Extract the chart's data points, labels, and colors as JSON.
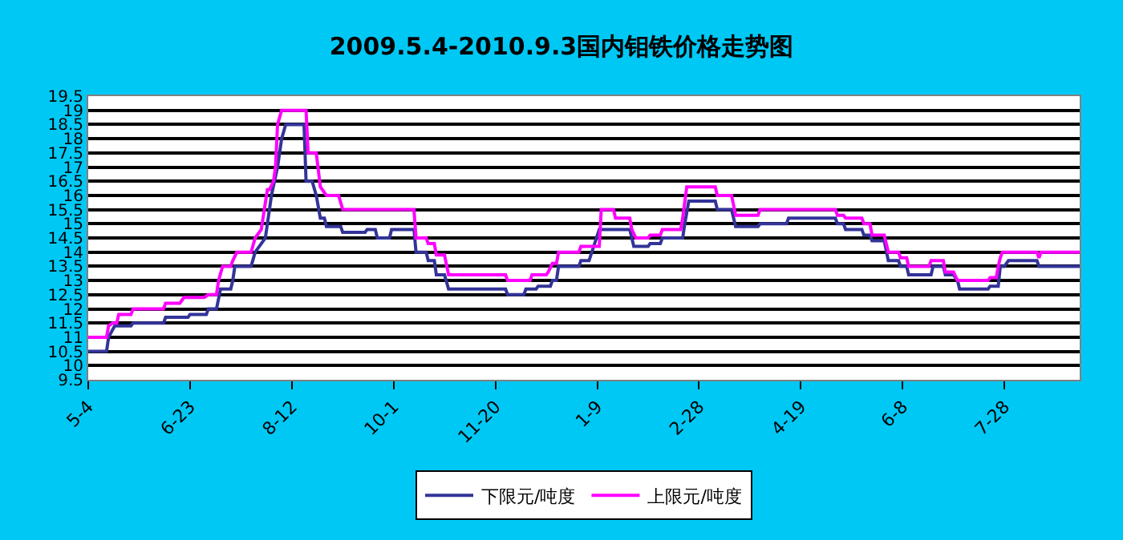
{
  "chart_data": {
    "type": "line",
    "title": "2009.5.4-2010.9.3国内钼铁价格走势图",
    "series": [
      {
        "name": "下限元/吨度",
        "color": "#333399",
        "x": [
          "2009-05-04",
          "2009-05-13",
          "2009-05-14",
          "2009-05-17",
          "2009-05-25",
          "2009-05-26",
          "2009-06-10",
          "2009-06-11",
          "2009-06-22",
          "2009-06-23",
          "2009-07-01",
          "2009-07-02",
          "2009-07-06",
          "2009-07-08",
          "2009-07-13",
          "2009-07-14",
          "2009-07-15",
          "2009-07-23",
          "2009-07-25",
          "2009-07-28",
          "2009-07-30",
          "2009-07-31",
          "2009-08-02",
          "2009-08-05",
          "2009-08-07",
          "2009-08-09",
          "2009-08-18",
          "2009-08-19",
          "2009-08-22",
          "2009-08-24",
          "2009-08-26",
          "2009-08-28",
          "2009-08-29",
          "2009-09-05",
          "2009-09-06",
          "2009-09-17",
          "2009-09-18",
          "2009-09-22",
          "2009-09-23",
          "2009-09-29",
          "2009-09-30",
          "2009-10-11",
          "2009-10-12",
          "2009-10-17",
          "2009-10-18",
          "2009-10-21",
          "2009-10-22",
          "2009-10-26",
          "2009-10-28",
          "2009-11-25",
          "2009-11-26",
          "2009-12-04",
          "2009-12-05",
          "2009-12-10",
          "2009-12-11",
          "2009-12-17",
          "2009-12-18",
          "2009-12-20",
          "2009-12-21",
          "2009-12-31",
          "2010-01-01",
          "2010-01-05",
          "2010-01-10",
          "2010-01-25",
          "2010-01-26",
          "2010-01-27",
          "2010-02-03",
          "2010-02-04",
          "2010-02-09",
          "2010-02-10",
          "2010-02-20",
          "2010-02-21",
          "2010-02-23",
          "2010-03-08",
          "2010-03-09",
          "2010-03-16",
          "2010-03-18",
          "2010-03-29",
          "2010-03-30",
          "2010-04-12",
          "2010-04-13",
          "2010-05-06",
          "2010-05-07",
          "2010-05-10",
          "2010-05-11",
          "2010-05-19",
          "2010-05-20",
          "2010-05-23",
          "2010-05-24",
          "2010-05-30",
          "2010-06-01",
          "2010-06-06",
          "2010-06-07",
          "2010-06-10",
          "2010-06-11",
          "2010-06-22",
          "2010-06-23",
          "2010-06-28",
          "2010-06-29",
          "2010-07-03",
          "2010-07-05",
          "2010-07-06",
          "2010-07-20",
          "2010-07-21",
          "2010-07-25",
          "2010-07-26",
          "2010-07-28",
          "2010-07-30",
          "2010-08-13",
          "2010-08-14",
          "2010-09-03"
        ],
        "values": [
          10.5,
          10.5,
          11.0,
          11.4,
          11.4,
          11.5,
          11.5,
          11.7,
          11.7,
          11.8,
          11.8,
          12.0,
          12.0,
          12.7,
          12.7,
          13.0,
          13.5,
          13.5,
          14.0,
          14.3,
          14.5,
          15.0,
          16.0,
          17.0,
          18.0,
          18.5,
          18.5,
          16.5,
          16.5,
          16.0,
          15.2,
          15.2,
          14.9,
          14.9,
          14.7,
          14.7,
          14.8,
          14.8,
          14.5,
          14.5,
          14.8,
          14.8,
          14.0,
          14.0,
          13.7,
          13.7,
          13.2,
          13.2,
          12.7,
          12.7,
          12.5,
          12.5,
          12.7,
          12.7,
          12.8,
          12.8,
          13.0,
          13.0,
          13.5,
          13.5,
          13.7,
          13.7,
          14.8,
          14.8,
          14.5,
          14.2,
          14.2,
          14.3,
          14.3,
          14.5,
          14.5,
          15.0,
          15.8,
          15.8,
          15.5,
          15.5,
          14.9,
          14.9,
          15.0,
          15.0,
          15.2,
          15.2,
          15.0,
          15.0,
          14.8,
          14.8,
          14.6,
          14.6,
          14.4,
          14.4,
          13.7,
          13.7,
          13.5,
          13.5,
          13.2,
          13.2,
          13.5,
          13.5,
          13.2,
          13.2,
          13.0,
          12.7,
          12.7,
          12.8,
          12.8,
          13.5,
          13.5,
          13.7,
          13.7,
          13.5,
          13.5
        ]
      },
      {
        "name": "上限元/吨度",
        "color": "#ff00ff",
        "x": [
          "2009-05-04",
          "2009-05-13",
          "2009-05-14",
          "2009-05-16",
          "2009-05-18",
          "2009-05-19",
          "2009-05-25",
          "2009-05-26",
          "2009-06-10",
          "2009-06-11",
          "2009-06-18",
          "2009-06-20",
          "2009-06-30",
          "2009-07-02",
          "2009-07-06",
          "2009-07-07",
          "2009-07-09",
          "2009-07-13",
          "2009-07-14",
          "2009-07-16",
          "2009-07-23",
          "2009-07-25",
          "2009-07-28",
          "2009-07-31",
          "2009-08-01",
          "2009-08-03",
          "2009-08-04",
          "2009-08-05",
          "2009-08-07",
          "2009-08-19",
          "2009-08-20",
          "2009-08-24",
          "2009-08-26",
          "2009-08-29",
          "2009-09-04",
          "2009-09-06",
          "2009-10-11",
          "2009-10-12",
          "2009-10-17",
          "2009-10-18",
          "2009-10-21",
          "2009-10-22",
          "2009-10-26",
          "2009-10-28",
          "2009-11-25",
          "2009-11-26",
          "2009-12-07",
          "2009-12-08",
          "2009-12-15",
          "2009-12-16",
          "2009-12-18",
          "2009-12-20",
          "2009-12-21",
          "2009-12-31",
          "2010-01-01",
          "2010-01-10",
          "2010-01-11",
          "2010-01-17",
          "2010-01-18",
          "2010-01-25",
          "2010-01-26",
          "2010-01-28",
          "2010-02-03",
          "2010-02-04",
          "2010-02-09",
          "2010-02-10",
          "2010-02-19",
          "2010-02-20",
          "2010-02-22",
          "2010-03-08",
          "2010-03-09",
          "2010-03-16",
          "2010-03-18",
          "2010-03-29",
          "2010-03-30",
          "2010-05-06",
          "2010-05-07",
          "2010-05-10",
          "2010-05-11",
          "2010-05-19",
          "2010-05-20",
          "2010-05-23",
          "2010-05-24",
          "2010-05-30",
          "2010-06-01",
          "2010-06-06",
          "2010-06-07",
          "2010-06-10",
          "2010-06-11",
          "2010-06-21",
          "2010-06-22",
          "2010-06-28",
          "2010-06-29",
          "2010-07-03",
          "2010-07-05",
          "2010-07-20",
          "2010-07-21",
          "2010-07-24",
          "2010-07-25",
          "2010-07-26",
          "2010-07-27",
          "2010-08-13",
          "2010-08-14",
          "2010-08-15",
          "2010-09-03"
        ],
        "values": [
          11.0,
          11.0,
          11.4,
          11.5,
          11.5,
          11.8,
          11.8,
          12.0,
          12.0,
          12.2,
          12.2,
          12.4,
          12.4,
          12.5,
          12.5,
          13.0,
          13.5,
          13.5,
          13.7,
          14.0,
          14.0,
          14.5,
          14.8,
          16.2,
          16.2,
          16.5,
          17.0,
          18.5,
          19.0,
          19.0,
          17.5,
          17.5,
          16.3,
          16.0,
          16.0,
          15.5,
          15.5,
          14.5,
          14.5,
          14.3,
          14.3,
          13.9,
          13.9,
          13.2,
          13.2,
          13.0,
          13.0,
          13.2,
          13.2,
          13.3,
          13.6,
          13.6,
          14.0,
          14.0,
          14.2,
          14.2,
          15.5,
          15.5,
          15.2,
          15.2,
          14.8,
          14.5,
          14.5,
          14.6,
          14.6,
          14.8,
          14.8,
          15.2,
          16.3,
          16.3,
          16.0,
          16.0,
          15.3,
          15.3,
          15.5,
          15.5,
          15.3,
          15.3,
          15.2,
          15.2,
          15.0,
          15.0,
          14.6,
          14.6,
          14.0,
          14.0,
          13.8,
          13.8,
          13.5,
          13.5,
          13.7,
          13.7,
          13.3,
          13.3,
          13.0,
          13.0,
          13.1,
          13.1,
          13.5,
          13.8,
          14.0,
          14.0,
          13.8,
          14.0,
          14.0
        ]
      }
    ],
    "xlim": [
      "2009-05-04",
      "2010-09-03"
    ],
    "xticks": [
      {
        "value": "2009-05-04",
        "label": "5-4"
      },
      {
        "value": "2009-06-23",
        "label": "6-23"
      },
      {
        "value": "2009-08-12",
        "label": "8-12"
      },
      {
        "value": "2009-10-01",
        "label": "10-1"
      },
      {
        "value": "2009-11-20",
        "label": "11-20"
      },
      {
        "value": "2010-01-09",
        "label": "1-9"
      },
      {
        "value": "2010-02-28",
        "label": "2-28"
      },
      {
        "value": "2010-04-19",
        "label": "4-19"
      },
      {
        "value": "2010-06-08",
        "label": "6-8"
      },
      {
        "value": "2010-07-28",
        "label": "7-28"
      }
    ],
    "ylim": [
      9.5,
      19.5
    ],
    "yticks": [
      9.5,
      10,
      10.5,
      11,
      11.5,
      12,
      12.5,
      13,
      13.5,
      14,
      14.5,
      15,
      15.5,
      16,
      16.5,
      17,
      17.5,
      18,
      18.5,
      19,
      19.5
    ],
    "grid": "y",
    "legend": "bottom",
    "marker": "none",
    "line_style": "solid"
  }
}
